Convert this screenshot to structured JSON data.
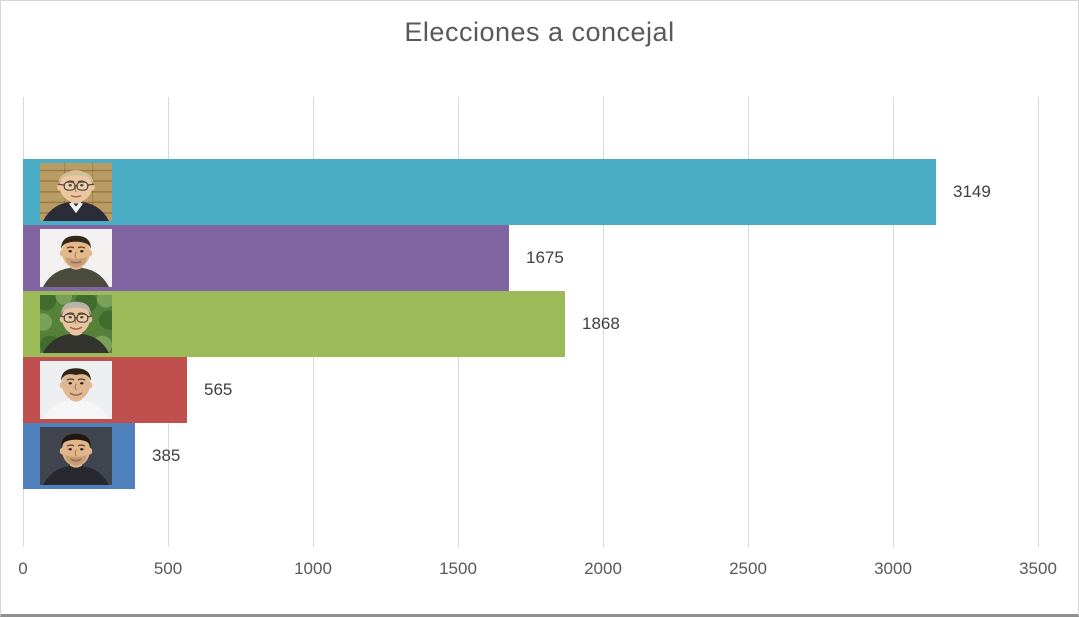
{
  "chart_data": {
    "type": "bar",
    "orientation": "horizontal",
    "title": "Elecciones a concejal",
    "xlim": [
      0,
      3500
    ],
    "x_ticks": [
      "0",
      "500",
      "1000",
      "1500",
      "2000",
      "2500",
      "3000",
      "3500"
    ],
    "grid": "vertical",
    "legend": false,
    "bars": [
      {
        "value": 3149,
        "data_label": "3149",
        "color": "#4BACC6",
        "photo": {
          "name": "candidate-photo-1",
          "desc": "older heavyset man with glasses and dark suit on wood-panel background",
          "bg": "#b99c63",
          "bg_pattern": "wood",
          "skin": "#ecc6a0",
          "hair": "#cfc09c",
          "hair_style": "balding",
          "face": "wide",
          "glasses": true,
          "stubble": false,
          "shirt": "#2c2c38",
          "collar": "#f0f0f0",
          "smile": "closed"
        }
      },
      {
        "value": 1675,
        "data_label": "1675",
        "color": "#8064A2",
        "photo": {
          "name": "candidate-photo-2",
          "desc": "young man with short dark hair and stubble on white background",
          "bg": "#f2f1ef",
          "bg_pattern": "none",
          "skin": "#e5b88c",
          "hair": "#33271a",
          "hair_style": "short",
          "face": "normal",
          "glasses": false,
          "stubble": true,
          "shirt": "#4b4b3d",
          "collar": null,
          "smile": "closed"
        }
      },
      {
        "value": 1868,
        "data_label": "1868",
        "color": "#9BBB59",
        "photo": {
          "name": "candidate-photo-3",
          "desc": "gray-haired man with glasses on green foliage background",
          "bg": "#55813b",
          "bg_pattern": "foliage",
          "skin": "#e9c49e",
          "hair": "#b7b4ac",
          "hair_style": "short",
          "face": "normal",
          "glasses": true,
          "stubble": false,
          "shirt": "#34342e",
          "collar": null,
          "smile": "smile"
        }
      },
      {
        "value": 565,
        "data_label": "565",
        "color": "#C0504D",
        "photo": {
          "name": "candidate-photo-4",
          "desc": "smiling man with dark receding hair and white shirt on light background",
          "bg": "#eceef0",
          "bg_pattern": "none",
          "skin": "#e0b791",
          "hair": "#2e2317",
          "hair_style": "receding",
          "face": "normal",
          "glasses": false,
          "stubble": false,
          "shirt": "#f6f6f6",
          "collar": null,
          "smile": "smile"
        }
      },
      {
        "value": 385,
        "data_label": "385",
        "color": "#4F81BD",
        "photo": {
          "name": "candidate-photo-5",
          "desc": "smiling young man with short dark hair on dark background",
          "bg": "#40454f",
          "bg_pattern": "none",
          "skin": "#e2b68a",
          "hair": "#1f1710",
          "hair_style": "short",
          "face": "normal",
          "glasses": false,
          "stubble": true,
          "shirt": "#282830",
          "collar": null,
          "smile": "teeth"
        }
      }
    ]
  },
  "colors": {
    "background": "#ffffff",
    "gridline": "#d9d9d9",
    "title": "#595959",
    "tick_label": "#595959",
    "data_label": "#404040",
    "border": "#d7d7d7",
    "bottom_edge": "#8f8f8f"
  }
}
